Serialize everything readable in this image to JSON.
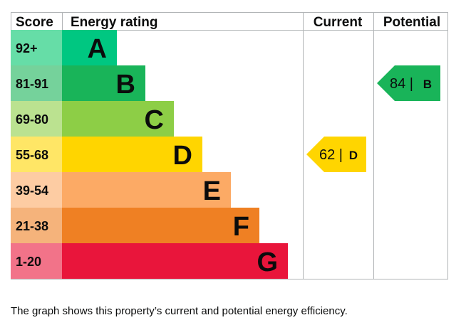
{
  "chart_data": {
    "type": "bar",
    "headers": {
      "score": "Score",
      "rating": "Energy rating",
      "current": "Current",
      "potential": "Potential"
    },
    "bands": [
      {
        "score": "92+",
        "rating": "A",
        "color": "#00c781",
        "score_bg": "#66dda7",
        "text_color": "#0b0c0c"
      },
      {
        "score": "81-91",
        "rating": "B",
        "color": "#19b459",
        "score_bg": "#75d29b",
        "text_color": "#0b0c0c"
      },
      {
        "score": "69-80",
        "rating": "C",
        "color": "#8dce46",
        "score_bg": "#bbe290",
        "text_color": "#0b0c0c"
      },
      {
        "score": "55-68",
        "rating": "D",
        "color": "#ffd500",
        "score_bg": "#ffe666",
        "text_color": "#0b0c0c"
      },
      {
        "score": "39-54",
        "rating": "E",
        "color": "#fcaa65",
        "score_bg": "#fdcca3",
        "text_color": "#0b0c0c"
      },
      {
        "score": "21-38",
        "rating": "F",
        "color": "#ef8023",
        "score_bg": "#f5b37b",
        "text_color": "#0b0c0c"
      },
      {
        "score": "1-20",
        "rating": "G",
        "color": "#e9153b",
        "score_bg": "#f27389",
        "text_color": "#0b0c0c"
      }
    ],
    "current": {
      "value": 62,
      "rating": "D",
      "color": "#ffd500",
      "label": "62 |",
      "letter": "D"
    },
    "potential": {
      "value": 84,
      "rating": "B",
      "color": "#19b459",
      "label": "84 |",
      "letter": "B"
    }
  },
  "caption": "The graph shows this property’s current and potential energy efficiency."
}
